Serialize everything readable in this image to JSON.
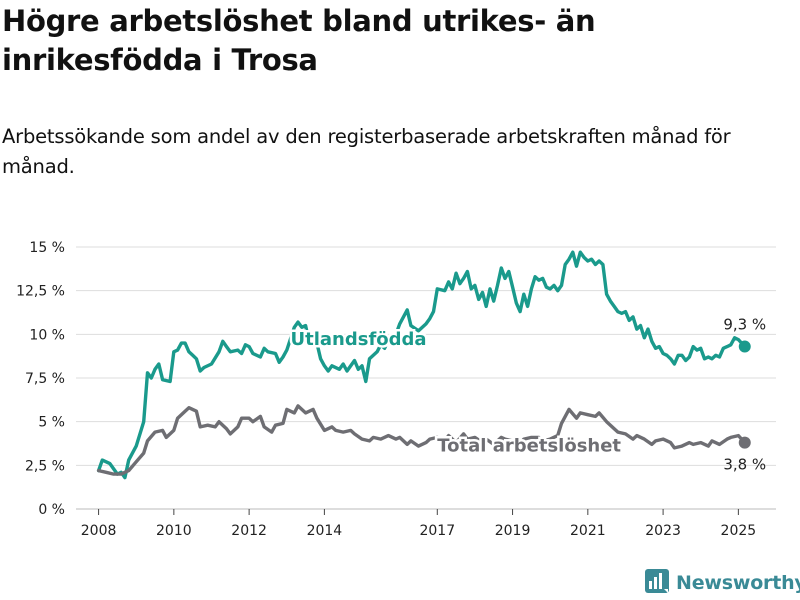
{
  "title": "Högre arbetslöshet bland utrikes- än inrikesfödda i Trosa",
  "subtitle": "Arbetssökande som andel av den registerbaserade arbetskraften månad för månad.",
  "brand": {
    "name": "Newsworthy",
    "icon": "newsworthy-logo-icon"
  },
  "colors": {
    "foreign": "#1a9a8c",
    "total": "#6e6e73",
    "grid": "#dddddd",
    "brand": "#3a8a96"
  },
  "chart_data": {
    "type": "line",
    "ylim": [
      0,
      15
    ],
    "y_ticks": [
      0,
      2.5,
      5,
      7.5,
      10,
      12.5,
      15
    ],
    "y_tick_labels": [
      "0 %",
      "2,5 %",
      "5 %",
      "7,5 %",
      "10 %",
      "12,5 %",
      "15 %"
    ],
    "x_ticks": [
      2008,
      2010,
      2012,
      2014,
      2017,
      2019,
      2021,
      2023,
      2025
    ],
    "x_tick_labels": [
      "2008",
      "2010",
      "2012",
      "2014",
      "2017",
      "2019",
      "2021",
      "2023",
      "2025"
    ],
    "x_range": [
      2007.4,
      2026.0
    ],
    "grid": "horizontal",
    "series": [
      {
        "name": "Utlandsfödda",
        "color": "#1a9a8c",
        "end_label": "9,3 %",
        "points": [
          [
            2008.0,
            2.2
          ],
          [
            2008.1,
            2.8
          ],
          [
            2008.3,
            2.6
          ],
          [
            2008.5,
            2.0
          ],
          [
            2008.6,
            2.1
          ],
          [
            2008.7,
            1.8
          ],
          [
            2008.8,
            2.8
          ],
          [
            2009.0,
            3.6
          ],
          [
            2009.2,
            5.0
          ],
          [
            2009.3,
            7.8
          ],
          [
            2009.4,
            7.5
          ],
          [
            2009.5,
            8.0
          ],
          [
            2009.6,
            8.3
          ],
          [
            2009.7,
            7.4
          ],
          [
            2009.9,
            7.3
          ],
          [
            2010.0,
            9.0
          ],
          [
            2010.1,
            9.1
          ],
          [
            2010.2,
            9.5
          ],
          [
            2010.3,
            9.5
          ],
          [
            2010.4,
            9.0
          ],
          [
            2010.5,
            8.8
          ],
          [
            2010.6,
            8.6
          ],
          [
            2010.7,
            7.9
          ],
          [
            2010.8,
            8.1
          ],
          [
            2011.0,
            8.3
          ],
          [
            2011.2,
            9.0
          ],
          [
            2011.3,
            9.6
          ],
          [
            2011.4,
            9.3
          ],
          [
            2011.5,
            9.0
          ],
          [
            2011.7,
            9.1
          ],
          [
            2011.8,
            8.9
          ],
          [
            2011.9,
            9.4
          ],
          [
            2012.0,
            9.3
          ],
          [
            2012.1,
            8.9
          ],
          [
            2012.3,
            8.7
          ],
          [
            2012.4,
            9.2
          ],
          [
            2012.5,
            9.0
          ],
          [
            2012.7,
            8.9
          ],
          [
            2012.8,
            8.4
          ],
          [
            2012.9,
            8.7
          ],
          [
            2013.0,
            9.1
          ],
          [
            2013.2,
            10.4
          ],
          [
            2013.3,
            10.7
          ],
          [
            2013.4,
            10.4
          ],
          [
            2013.5,
            10.5
          ],
          [
            2013.6,
            9.5
          ],
          [
            2013.8,
            9.5
          ],
          [
            2013.9,
            8.6
          ],
          [
            2014.0,
            8.2
          ],
          [
            2014.1,
            7.9
          ],
          [
            2014.2,
            8.2
          ],
          [
            2014.4,
            8.0
          ],
          [
            2014.5,
            8.3
          ],
          [
            2014.6,
            7.9
          ],
          [
            2014.8,
            8.5
          ],
          [
            2014.9,
            8.0
          ],
          [
            2015.0,
            8.2
          ],
          [
            2015.1,
            7.3
          ],
          [
            2015.2,
            8.6
          ],
          [
            2015.4,
            9.0
          ],
          [
            2015.5,
            9.4
          ],
          [
            2015.6,
            9.2
          ],
          [
            2015.7,
            9.7
          ],
          [
            2015.8,
            9.4
          ],
          [
            2016.0,
            10.6
          ],
          [
            2016.2,
            11.4
          ],
          [
            2016.3,
            10.5
          ],
          [
            2016.5,
            10.2
          ],
          [
            2016.7,
            10.6
          ],
          [
            2016.8,
            10.9
          ],
          [
            2016.9,
            11.3
          ],
          [
            2017.0,
            12.6
          ],
          [
            2017.2,
            12.5
          ],
          [
            2017.3,
            13.0
          ],
          [
            2017.4,
            12.6
          ],
          [
            2017.5,
            13.5
          ],
          [
            2017.6,
            12.9
          ],
          [
            2017.7,
            13.2
          ],
          [
            2017.8,
            13.6
          ],
          [
            2017.9,
            12.6
          ],
          [
            2018.0,
            12.8
          ],
          [
            2018.1,
            12.0
          ],
          [
            2018.2,
            12.4
          ],
          [
            2018.3,
            11.6
          ],
          [
            2018.4,
            12.6
          ],
          [
            2018.5,
            11.9
          ],
          [
            2018.6,
            12.8
          ],
          [
            2018.7,
            13.8
          ],
          [
            2018.8,
            13.2
          ],
          [
            2018.9,
            13.6
          ],
          [
            2019.0,
            12.7
          ],
          [
            2019.1,
            11.8
          ],
          [
            2019.2,
            11.3
          ],
          [
            2019.3,
            12.3
          ],
          [
            2019.4,
            11.6
          ],
          [
            2019.5,
            12.6
          ],
          [
            2019.6,
            13.3
          ],
          [
            2019.7,
            13.1
          ],
          [
            2019.8,
            13.2
          ],
          [
            2019.9,
            12.7
          ],
          [
            2020.0,
            12.6
          ],
          [
            2020.1,
            12.8
          ],
          [
            2020.2,
            12.5
          ],
          [
            2020.3,
            12.8
          ],
          [
            2020.4,
            14.0
          ],
          [
            2020.5,
            14.3
          ],
          [
            2020.6,
            14.7
          ],
          [
            2020.7,
            13.9
          ],
          [
            2020.8,
            14.7
          ],
          [
            2020.9,
            14.4
          ],
          [
            2021.0,
            14.2
          ],
          [
            2021.1,
            14.3
          ],
          [
            2021.2,
            14.0
          ],
          [
            2021.3,
            14.2
          ],
          [
            2021.4,
            14.0
          ],
          [
            2021.5,
            12.3
          ],
          [
            2021.6,
            11.9
          ],
          [
            2021.7,
            11.6
          ],
          [
            2021.8,
            11.3
          ],
          [
            2021.9,
            11.2
          ],
          [
            2022.0,
            11.3
          ],
          [
            2022.1,
            10.8
          ],
          [
            2022.2,
            11.0
          ],
          [
            2022.3,
            10.3
          ],
          [
            2022.4,
            10.5
          ],
          [
            2022.5,
            9.8
          ],
          [
            2022.6,
            10.3
          ],
          [
            2022.7,
            9.6
          ],
          [
            2022.8,
            9.2
          ],
          [
            2022.9,
            9.3
          ],
          [
            2023.0,
            8.9
          ],
          [
            2023.1,
            8.8
          ],
          [
            2023.2,
            8.6
          ],
          [
            2023.3,
            8.3
          ],
          [
            2023.4,
            8.8
          ],
          [
            2023.5,
            8.8
          ],
          [
            2023.6,
            8.5
          ],
          [
            2023.7,
            8.7
          ],
          [
            2023.8,
            9.3
          ],
          [
            2023.9,
            9.1
          ],
          [
            2024.0,
            9.2
          ],
          [
            2024.1,
            8.6
          ],
          [
            2024.2,
            8.7
          ],
          [
            2024.3,
            8.6
          ],
          [
            2024.4,
            8.8
          ],
          [
            2024.5,
            8.7
          ],
          [
            2024.6,
            9.2
          ],
          [
            2024.7,
            9.3
          ],
          [
            2024.8,
            9.4
          ],
          [
            2024.9,
            9.8
          ],
          [
            2025.0,
            9.7
          ],
          [
            2025.17,
            9.3
          ]
        ]
      },
      {
        "name": "Total arbetslöshet",
        "color": "#6e6e73",
        "end_label": "3,8 %",
        "points": [
          [
            2008.0,
            2.2
          ],
          [
            2008.2,
            2.1
          ],
          [
            2008.4,
            2.0
          ],
          [
            2008.6,
            2.0
          ],
          [
            2008.8,
            2.2
          ],
          [
            2009.0,
            2.7
          ],
          [
            2009.2,
            3.2
          ],
          [
            2009.3,
            3.9
          ],
          [
            2009.5,
            4.4
          ],
          [
            2009.7,
            4.5
          ],
          [
            2009.8,
            4.1
          ],
          [
            2010.0,
            4.5
          ],
          [
            2010.1,
            5.2
          ],
          [
            2010.3,
            5.6
          ],
          [
            2010.4,
            5.8
          ],
          [
            2010.6,
            5.6
          ],
          [
            2010.7,
            4.7
          ],
          [
            2010.9,
            4.8
          ],
          [
            2011.1,
            4.7
          ],
          [
            2011.2,
            5.0
          ],
          [
            2011.4,
            4.6
          ],
          [
            2011.5,
            4.3
          ],
          [
            2011.7,
            4.7
          ],
          [
            2011.8,
            5.2
          ],
          [
            2012.0,
            5.2
          ],
          [
            2012.1,
            5.0
          ],
          [
            2012.3,
            5.3
          ],
          [
            2012.4,
            4.7
          ],
          [
            2012.6,
            4.4
          ],
          [
            2012.7,
            4.8
          ],
          [
            2012.9,
            4.9
          ],
          [
            2013.0,
            5.7
          ],
          [
            2013.2,
            5.5
          ],
          [
            2013.3,
            5.9
          ],
          [
            2013.5,
            5.5
          ],
          [
            2013.7,
            5.7
          ],
          [
            2013.8,
            5.2
          ],
          [
            2014.0,
            4.5
          ],
          [
            2014.2,
            4.7
          ],
          [
            2014.3,
            4.5
          ],
          [
            2014.5,
            4.4
          ],
          [
            2014.7,
            4.5
          ],
          [
            2014.8,
            4.3
          ],
          [
            2015.0,
            4.0
          ],
          [
            2015.2,
            3.9
          ],
          [
            2015.3,
            4.1
          ],
          [
            2015.5,
            4.0
          ],
          [
            2015.7,
            4.2
          ],
          [
            2015.9,
            4.0
          ],
          [
            2016.0,
            4.1
          ],
          [
            2016.2,
            3.7
          ],
          [
            2016.3,
            3.9
          ],
          [
            2016.5,
            3.6
          ],
          [
            2016.7,
            3.8
          ],
          [
            2016.8,
            4.0
          ],
          [
            2017.0,
            4.1
          ],
          [
            2017.2,
            3.9
          ],
          [
            2017.3,
            4.2
          ],
          [
            2017.5,
            3.8
          ],
          [
            2017.7,
            4.3
          ],
          [
            2017.8,
            4.0
          ],
          [
            2018.0,
            4.1
          ],
          [
            2018.2,
            3.8
          ],
          [
            2018.3,
            4.0
          ],
          [
            2018.5,
            3.7
          ],
          [
            2018.7,
            4.1
          ],
          [
            2018.8,
            4.0
          ],
          [
            2019.0,
            3.9
          ],
          [
            2019.2,
            3.7
          ],
          [
            2019.3,
            4.0
          ],
          [
            2019.5,
            4.1
          ],
          [
            2019.7,
            4.1
          ],
          [
            2019.8,
            3.9
          ],
          [
            2020.0,
            4.0
          ],
          [
            2020.2,
            4.2
          ],
          [
            2020.3,
            4.9
          ],
          [
            2020.5,
            5.7
          ],
          [
            2020.7,
            5.2
          ],
          [
            2020.8,
            5.5
          ],
          [
            2021.0,
            5.4
          ],
          [
            2021.2,
            5.3
          ],
          [
            2021.3,
            5.5
          ],
          [
            2021.5,
            5.0
          ],
          [
            2021.7,
            4.6
          ],
          [
            2021.8,
            4.4
          ],
          [
            2022.0,
            4.3
          ],
          [
            2022.2,
            4.0
          ],
          [
            2022.3,
            4.2
          ],
          [
            2022.5,
            4.0
          ],
          [
            2022.7,
            3.7
          ],
          [
            2022.8,
            3.9
          ],
          [
            2023.0,
            4.0
          ],
          [
            2023.2,
            3.8
          ],
          [
            2023.3,
            3.5
          ],
          [
            2023.5,
            3.6
          ],
          [
            2023.7,
            3.8
          ],
          [
            2023.8,
            3.7
          ],
          [
            2024.0,
            3.8
          ],
          [
            2024.2,
            3.6
          ],
          [
            2024.3,
            3.9
          ],
          [
            2024.5,
            3.7
          ],
          [
            2024.7,
            4.0
          ],
          [
            2024.8,
            4.1
          ],
          [
            2025.0,
            4.2
          ],
          [
            2025.17,
            3.8
          ]
        ]
      }
    ]
  }
}
